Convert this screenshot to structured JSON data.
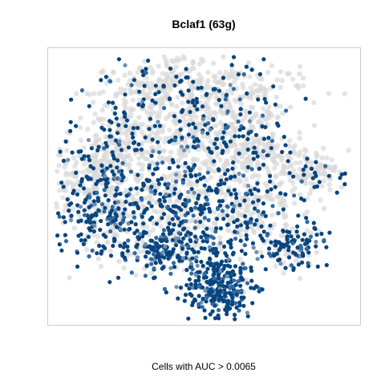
{
  "chart_data": {
    "type": "scatter",
    "title": "Bclaf1 (63g)",
    "xlabel": "Cells with AUC > 0.0065",
    "ylabel": "",
    "grid": false,
    "legend": "none",
    "colors": {
      "low": "#d9d9d9",
      "high": "#08457e",
      "frame": "#cccccc"
    },
    "series": [
      {
        "name": "",
        "description_of_clusters": [],
        "points_note": ""
      }
    ]
  }
}
